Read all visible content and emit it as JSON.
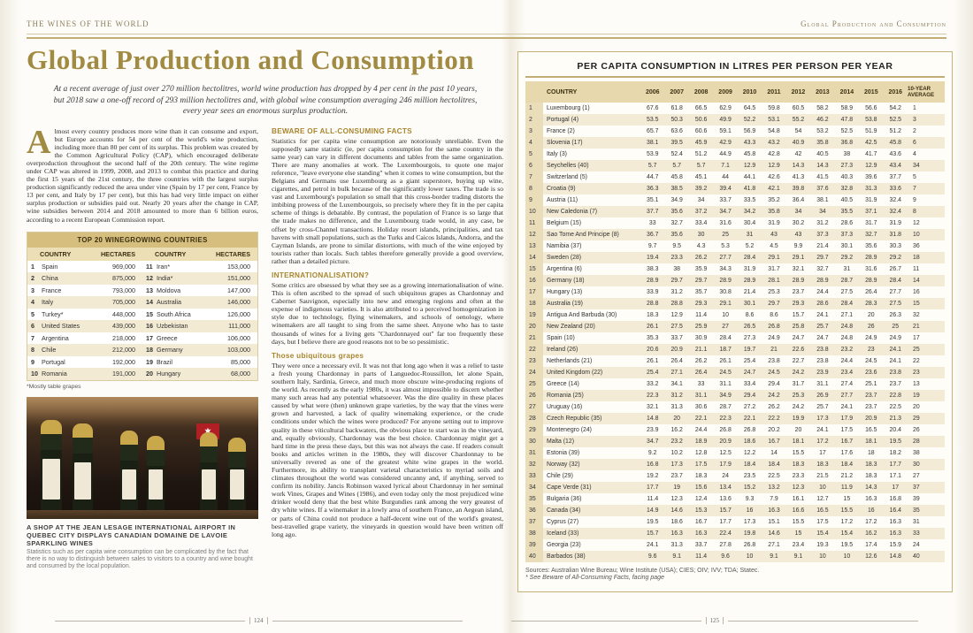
{
  "header": {
    "left": "THE WINES OF THE WORLD",
    "right": "Global Production and Consumption"
  },
  "left_page": {
    "page_number": "124",
    "title": "Global Production and Consumption",
    "intro": "At a recent average of just over 270 million hectolitres, world wine production has dropped by 4 per cent in the past 10 years, but 2018 saw a one-off record of 293 million hectolitres and, with global wine consumption averaging 246 million hectolitres, every year sees an enormous surplus production.",
    "dropcap": "A",
    "opening_paragraph": "lmost every country produces more wine than it can consume and export, but Europe accounts for 54 per cent of the world's wine production, including more than 80 per cent of its surplus. This problem was created by the Common Agricultural Policy (CAP), which encouraged deliberate overproduction throughout the second half of the 20th century. The wine regime under CAP was altered in 1999, 2008, and 2013 to combat this practice and during the first 15 years of the 21st century, the three countries with the largest surplus production significantly reduced the area under vine (Spain by 17 per cent, France by 13 per cent, and Italy by 17 per cent), but this has had very little impact on either surplus production or subsidies paid out. Nearly 20 years after the change in CAP, wine subsidies between 2014 and 2018 amounted to more than 6 billion euros, according to a recent European Commission report.",
    "top20_table": {
      "title": "TOP 20 WINEGROWING COUNTRIES",
      "headers": [
        "COUNTRY",
        "HECTARES",
        "COUNTRY",
        "HECTARES"
      ],
      "rows": [
        [
          "1",
          "Spain",
          "969,000",
          "11",
          "Iran*",
          "153,000"
        ],
        [
          "2",
          "China",
          "875,000",
          "12",
          "India*",
          "151,000"
        ],
        [
          "3",
          "France",
          "793,000",
          "13",
          "Moldova",
          "147,000"
        ],
        [
          "4",
          "Italy",
          "705,000",
          "14",
          "Australia",
          "146,000"
        ],
        [
          "5",
          "Turkey*",
          "448,000",
          "15",
          "South Africa",
          "126,000"
        ],
        [
          "6",
          "United States",
          "439,000",
          "16",
          "Uzbekistan",
          "111,000"
        ],
        [
          "7",
          "Argentina",
          "218,000",
          "17",
          "Greece",
          "106,000"
        ],
        [
          "8",
          "Chile",
          "212,000",
          "18",
          "Germany",
          "103,000"
        ],
        [
          "9",
          "Portugal",
          "192,000",
          "19",
          "Brazil",
          "85,000"
        ],
        [
          "10",
          "Romania",
          "191,000",
          "20",
          "Hungary",
          "68,000"
        ]
      ],
      "footnote": "*Mostly table grapes"
    },
    "photo_caption": {
      "bold": "A SHOP AT THE JEAN LESAGE INTERNATIONAL AIRPORT IN QUEBEC CITY DISPLAYS CANADIAN DOMAINE DE LAVOIE SPARKLING WINES",
      "text": "Statistics such as per capita wine consumption can be complicated by the fact that there is no way to distinguish between sales to visitors to a country and wine bought and consumed by the local population."
    },
    "sections": [
      {
        "heading": "BEWARE OF ALL-CONSUMING FACTS",
        "body": "Statistics for per capita wine consumption are notoriously unreliable. Even the supposedly same statistic (ie, per capita consumption for the same country in the same year) can vary in different documents and tables from the same organization. There are many anomalies at work. The Luxembourgois, to quote one major reference, \"leave everyone else standing\" when it comes to wine consumption, but the Belgians and Germans use Luxembourg as a giant superstore, buying up wine, cigarettes, and petrol in bulk because of the significantly lower taxes. The trade is so vast and Luxembourg's population so small that this cross-border trading distorts the imbibing prowess of the Luxembourgois, so precisely where they fit in the per capita scheme of things is debatable. By contrast, the population of France is so large that the trade makes no difference, and the Luxembourg trade would, in any case, be offset by cross-Channel transactions. Holiday resort islands, principalities, and tax havens with small populations, such as the Turks and Caicos Islands, Andorra, and the Cayman Islands, are prone to similar distortions, with much of the wine enjoyed by tourists rather than locals. Such tables therefore generally provide a good overview, rather than a detailed picture."
      },
      {
        "heading": "INTERNATIONALISATION?",
        "body": "Some critics are obsessed by what they see as a growing internationalisation of wine. This is often ascribed to the spread of such ubiquitous grapes as Chardonnay and Cabernet Sauvignon, especially into new and emerging regions and often at the expense of indigenous varieties. It is also attributed to a perceived homogenization in style due to technology, flying winemakers, and schools of oenology, where winemakers are all taught to sing from the same sheet. Anyone who has to taste thousands of wines for a living gets \"Chardonnayed out\" far too frequently these days, but I believe there are good reasons not to be so pessimistic."
      },
      {
        "heading": "Those ubiquitous grapes",
        "body": "They were once a necessary evil. It was not that long ago when it was a relief to taste a fresh young Chardonnay in parts of Languedoc-Roussillon, let alone Spain, southern Italy, Sardinia, Greece, and much more obscure wine-producing regions of the world. As recently as the early 1980s, it was almost impossible to discern whether many such areas had any potential whatsoever. Was the dire quality in these places caused by what were (then) unknown grape varieties, by the way that the vines were grown and harvested, a lack of quality winemaking experience, or the crude conditions under which the wines were produced? For anyone setting out to improve quality in these viticultural backwaters, the obvious place to start was in the vineyard, and, equally obviously, Chardonnay was the best choice. Chardonnay might get a hard time in the press these days, but this was not always the case. If readers consult books and articles written in the 1980s, they will discover Chardonnay to be universally revered as one of the greatest white wine grapes in the world. Furthermore, its ability to transplant varietal characteristics to myriad soils and climates throughout the world was considered uncanny and, if anything, served to confirm its nobility. Jancis Robinson waxed lyrical about Chardonnay in her seminal work Vines, Grapes and Wines (1986), and even today only the most prejudiced wine drinker would deny that the best white Burgundies rank among the very greatest of dry white wines. If a winemaker in a lowly area of southern France, an Aegean island, or parts of China could not produce a half-decent wine out of the world's greatest, best-travelled grape variety, the vineyards in question would have been written off long ago."
      }
    ]
  },
  "right_page": {
    "page_number": "125",
    "table": {
      "title": "PER CAPITA CONSUMPTION  IN LITRES PER PERSON PER YEAR",
      "country_header": "COUNTRY",
      "year_headers": [
        "2006",
        "2007",
        "2008",
        "2009",
        "2010",
        "2011",
        "2012",
        "2013",
        "2014",
        "2015",
        "2016"
      ],
      "avg_header": "10-YEAR AVERAGE",
      "rows": [
        [
          "1",
          "Luxembourg (1)",
          "67.6",
          "61.8",
          "66.5",
          "62.9",
          "64.5",
          "59.8",
          "60.5",
          "58.2",
          "58.9",
          "56.6",
          "54.2",
          "1"
        ],
        [
          "2",
          "Portugal (4)",
          "53.5",
          "50.3",
          "50.6",
          "49.9",
          "52.2",
          "53.1",
          "55.2",
          "46.2",
          "47.8",
          "53.8",
          "52.5",
          "3"
        ],
        [
          "3",
          "France (2)",
          "65.7",
          "63.6",
          "60.6",
          "59.1",
          "56.9",
          "54.8",
          "54",
          "53.2",
          "52.5",
          "51.9",
          "51.2",
          "2"
        ],
        [
          "4",
          "Slovenia (17)",
          "38.1",
          "39.5",
          "45.9",
          "42.9",
          "43.3",
          "43.2",
          "40.9",
          "35.8",
          "36.8",
          "42.5",
          "45.8",
          "6"
        ],
        [
          "5",
          "Italy (3)",
          "53.9",
          "52.4",
          "51.2",
          "44.9",
          "45.8",
          "42.8",
          "42",
          "40.5",
          "38",
          "41.7",
          "43.6",
          "4"
        ],
        [
          "6",
          "Seychelles (40)",
          "5.7",
          "5.7",
          "5.7",
          "7.1",
          "12.9",
          "12.9",
          "14.3",
          "14.3",
          "27.3",
          "12.9",
          "43.4",
          "34"
        ],
        [
          "7",
          "Switzerland (5)",
          "44.7",
          "45.8",
          "45.1",
          "44",
          "44.1",
          "42.6",
          "41.3",
          "41.5",
          "40.3",
          "39.6",
          "37.7",
          "5"
        ],
        [
          "8",
          "Croatia (9)",
          "36.3",
          "38.5",
          "39.2",
          "39.4",
          "41.8",
          "42.1",
          "39.8",
          "37.6",
          "32.8",
          "31.3",
          "33.6",
          "7"
        ],
        [
          "9",
          "Austria (11)",
          "35.1",
          "34.9",
          "34",
          "33.7",
          "33.5",
          "35.2",
          "36.4",
          "38.1",
          "40.5",
          "31.9",
          "32.4",
          "9"
        ],
        [
          "10",
          "New Caledonia (7)",
          "37.7",
          "35.6",
          "37.2",
          "34.7",
          "34.2",
          "35.8",
          "34",
          "34",
          "35.5",
          "37.1",
          "32.4",
          "8"
        ],
        [
          "11",
          "Belgium (15)",
          "33",
          "32.7",
          "33.4",
          "31.6",
          "30.4",
          "31.9",
          "30.2",
          "31.2",
          "28.6",
          "31.7",
          "31.9",
          "12"
        ],
        [
          "12",
          "Sao Tome And Principe (8)",
          "36.7",
          "35.6",
          "30",
          "25",
          "31",
          "43",
          "43",
          "37.3",
          "37.3",
          "32.7",
          "31.8",
          "10"
        ],
        [
          "13",
          "Namibia (37)",
          "9.7",
          "9.5",
          "4.3",
          "5.3",
          "5.2",
          "4.5",
          "9.9",
          "21.4",
          "30.1",
          "35.6",
          "30.3",
          "36"
        ],
        [
          "14",
          "Sweden (28)",
          "19.4",
          "23.3",
          "26.2",
          "27.7",
          "28.4",
          "29.1",
          "29.1",
          "29.7",
          "29.2",
          "28.9",
          "29.2",
          "18"
        ],
        [
          "15",
          "Argentina (6)",
          "38.3",
          "38",
          "35.9",
          "34.3",
          "31.9",
          "31.7",
          "32.1",
          "32.7",
          "31",
          "31.6",
          "26.7",
          "11"
        ],
        [
          "16",
          "Germany (18)",
          "28.9",
          "29.7",
          "29.7",
          "28.9",
          "28.9",
          "28.1",
          "28.9",
          "28.9",
          "28.7",
          "28.9",
          "28.4",
          "14"
        ],
        [
          "17",
          "Hungary (13)",
          "33.9",
          "31.2",
          "35.7",
          "30.8",
          "21.4",
          "25.3",
          "23.7",
          "24.4",
          "27.5",
          "26.4",
          "27.7",
          "16"
        ],
        [
          "18",
          "Australia (19)",
          "28.8",
          "28.8",
          "29.3",
          "29.1",
          "30.1",
          "29.7",
          "29.3",
          "28.6",
          "28.4",
          "28.3",
          "27.5",
          "15"
        ],
        [
          "19",
          "Antigua And Barbuda (30)",
          "18.3",
          "12.9",
          "11.4",
          "10",
          "8.6",
          "8.6",
          "15.7",
          "24.1",
          "27.1",
          "20",
          "26.3",
          "32"
        ],
        [
          "20",
          "New Zealand (20)",
          "26.1",
          "27.5",
          "25.9",
          "27",
          "26.5",
          "26.8",
          "25.8",
          "25.7",
          "24.8",
          "26",
          "25",
          "21"
        ],
        [
          "21",
          "Spain (10)",
          "35.3",
          "33.7",
          "30.9",
          "28.4",
          "27.3",
          "24.9",
          "24.7",
          "24.7",
          "24.8",
          "24.9",
          "24.9",
          "17"
        ],
        [
          "22",
          "Ireland (26)",
          "20.6",
          "20.9",
          "21.1",
          "18.7",
          "19.7",
          "21",
          "22.6",
          "23.8",
          "23.2",
          "23",
          "24.1",
          "25"
        ],
        [
          "23",
          "Netherlands (21)",
          "26.1",
          "26.4",
          "26.2",
          "26.1",
          "25.4",
          "23.8",
          "22.7",
          "23.8",
          "24.4",
          "24.5",
          "24.1",
          "22"
        ],
        [
          "24",
          "United Kingdom (22)",
          "25.4",
          "27.1",
          "26.4",
          "24.5",
          "24.7",
          "24.5",
          "24.2",
          "23.9",
          "23.4",
          "23.6",
          "23.8",
          "23"
        ],
        [
          "25",
          "Greece (14)",
          "33.2",
          "34.1",
          "33",
          "31.1",
          "33.4",
          "29.4",
          "31.7",
          "31.1",
          "27.4",
          "25.1",
          "23.7",
          "13"
        ],
        [
          "26",
          "Romania (25)",
          "22.3",
          "31.2",
          "31.1",
          "34.9",
          "29.4",
          "24.2",
          "25.3",
          "26.9",
          "27.7",
          "23.7",
          "22.8",
          "19"
        ],
        [
          "27",
          "Uruguay (16)",
          "32.1",
          "31.3",
          "30.6",
          "28.7",
          "27.2",
          "26.2",
          "24.2",
          "25.7",
          "24.1",
          "23.7",
          "22.5",
          "20"
        ],
        [
          "28",
          "Czech Republic (35)",
          "14.8",
          "20",
          "22.1",
          "22.3",
          "22.1",
          "22.2",
          "19.9",
          "17.3",
          "17.9",
          "20.9",
          "21.3",
          "29"
        ],
        [
          "29",
          "Montenegro (24)",
          "23.9",
          "16.2",
          "24.4",
          "26.8",
          "26.8",
          "20.2",
          "20",
          "24.1",
          "17.5",
          "16.5",
          "20.4",
          "26"
        ],
        [
          "30",
          "Malta (12)",
          "34.7",
          "23.2",
          "18.9",
          "20.9",
          "18.6",
          "16.7",
          "18.1",
          "17.2",
          "16.7",
          "18.1",
          "19.5",
          "28"
        ],
        [
          "31",
          "Estonia (39)",
          "9.2",
          "10.2",
          "12.8",
          "12.5",
          "12.2",
          "14",
          "15.5",
          "17",
          "17.6",
          "18",
          "18.2",
          "38"
        ],
        [
          "32",
          "Norway (32)",
          "16.8",
          "17.3",
          "17.5",
          "17.9",
          "18.4",
          "18.4",
          "18.3",
          "18.3",
          "18.4",
          "18.3",
          "17.7",
          "30"
        ],
        [
          "33",
          "Chile (29)",
          "19.2",
          "23.7",
          "18.3",
          "24",
          "23.5",
          "22.5",
          "23.3",
          "21.5",
          "21.2",
          "18.3",
          "17.1",
          "27"
        ],
        [
          "34",
          "Cape Verde (31)",
          "17.7",
          "19",
          "15.6",
          "13.4",
          "15.2",
          "13.2",
          "12.3",
          "10",
          "11.9",
          "14.3",
          "17",
          "37"
        ],
        [
          "35",
          "Bulgaria (36)",
          "11.4",
          "12.3",
          "12.4",
          "13.6",
          "9.3",
          "7.9",
          "16.1",
          "12.7",
          "15",
          "16.3",
          "16.8",
          "39"
        ],
        [
          "36",
          "Canada (34)",
          "14.9",
          "14.6",
          "15.3",
          "15.7",
          "16",
          "16.3",
          "16.6",
          "16.5",
          "15.5",
          "16",
          "16.4",
          "35"
        ],
        [
          "37",
          "Cyprus (27)",
          "19.5",
          "18.6",
          "16.7",
          "17.7",
          "17.3",
          "15.1",
          "15.5",
          "17.5",
          "17.2",
          "17.2",
          "16.3",
          "31"
        ],
        [
          "38",
          "Iceland (33)",
          "15.7",
          "16.3",
          "16.3",
          "22.4",
          "19.8",
          "14.6",
          "15",
          "15.4",
          "15.4",
          "16.2",
          "16.3",
          "33"
        ],
        [
          "39",
          "Georgia (23)",
          "24.1",
          "31.3",
          "33.7",
          "27.8",
          "26.8",
          "27.1",
          "23.4",
          "19.3",
          "19.5",
          "17.4",
          "15.9",
          "24"
        ],
        [
          "40",
          "Barbados (38)",
          "9.6",
          "9.1",
          "11.4",
          "9.6",
          "10",
          "9.1",
          "9.1",
          "10",
          "10",
          "12.6",
          "14.8",
          "40"
        ]
      ]
    },
    "sources": "Sources: Australian Wine Bureau; Wine Institute (USA); CIES; OIV; IVV; TDA; Statec.",
    "footnote": "* See Beware of All-Consuming Facts, facing page"
  }
}
